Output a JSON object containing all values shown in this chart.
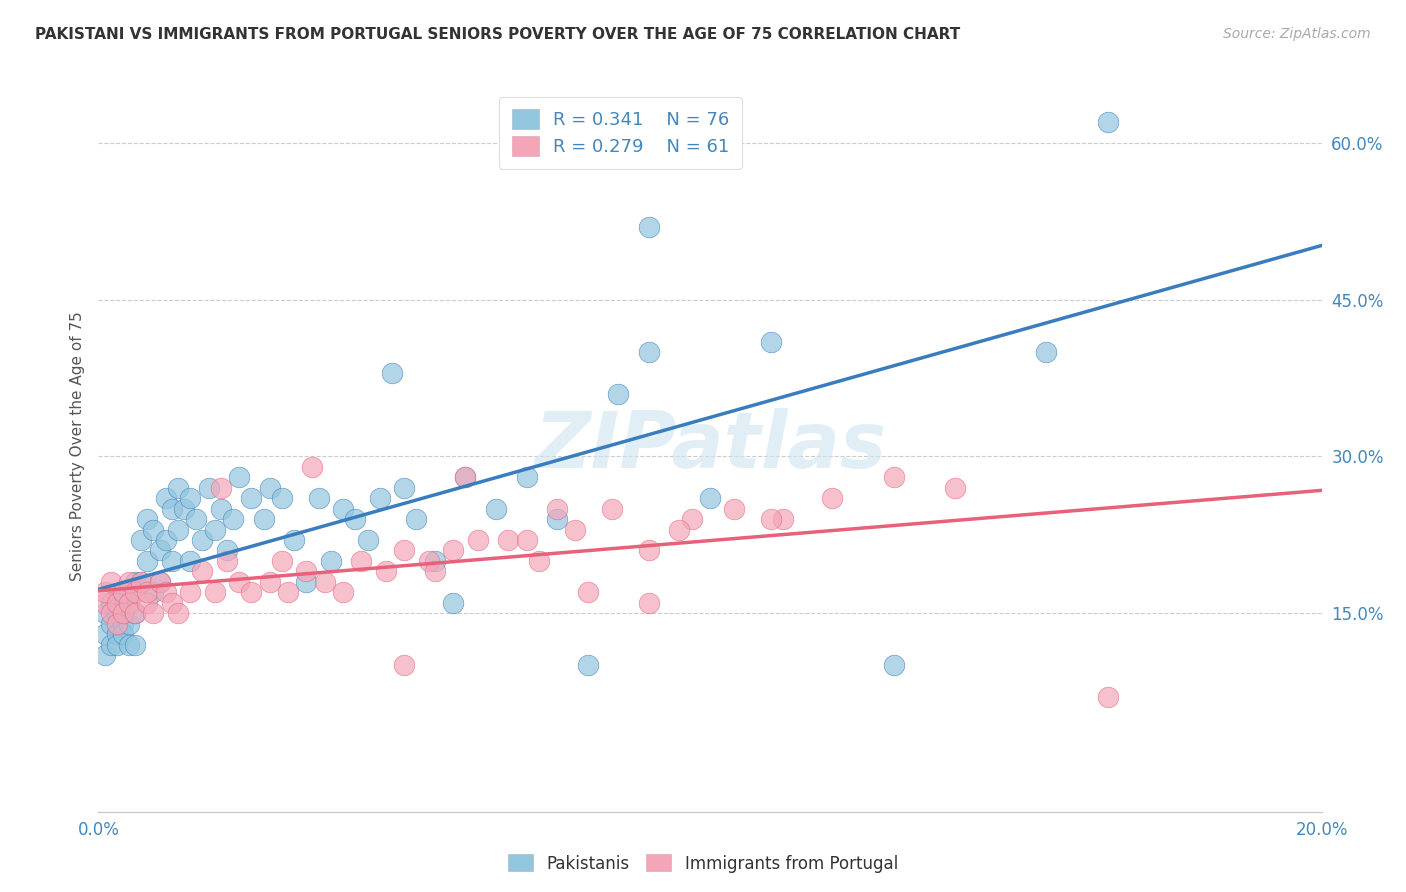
{
  "title": "PAKISTANI VS IMMIGRANTS FROM PORTUGAL SENIORS POVERTY OVER THE AGE OF 75 CORRELATION CHART",
  "source": "Source: ZipAtlas.com",
  "ylabel": "Seniors Poverty Over the Age of 75",
  "xlim": [
    0.0,
    0.2
  ],
  "ylim": [
    -0.04,
    0.66
  ],
  "x_ticks": [
    0.0,
    0.05,
    0.1,
    0.15,
    0.2
  ],
  "x_tick_labels": [
    "0.0%",
    "",
    "",
    "",
    "20.0%"
  ],
  "y_ticks_right": [
    0.15,
    0.3,
    0.45,
    0.6
  ],
  "y_tick_labels_right": [
    "15.0%",
    "30.0%",
    "45.0%",
    "60.0%"
  ],
  "blue_color": "#92c5de",
  "pink_color": "#f4a6b8",
  "blue_line_color": "#3a7dbf",
  "pink_line_color": "#e8607a",
  "legend_r_blue": "R = 0.341",
  "legend_n_blue": "N = 76",
  "legend_r_pink": "R = 0.279",
  "legend_n_pink": "N = 61",
  "legend_label_blue": "Pakistanis",
  "legend_label_pink": "Immigrants from Portugal",
  "watermark": "ZIPatlas",
  "blue_x": [
    0.001,
    0.001,
    0.001,
    0.002,
    0.002,
    0.002,
    0.003,
    0.003,
    0.003,
    0.003,
    0.004,
    0.004,
    0.004,
    0.004,
    0.005,
    0.005,
    0.005,
    0.005,
    0.006,
    0.006,
    0.006,
    0.007,
    0.007,
    0.008,
    0.008,
    0.009,
    0.009,
    0.01,
    0.01,
    0.011,
    0.011,
    0.012,
    0.012,
    0.013,
    0.013,
    0.014,
    0.015,
    0.015,
    0.016,
    0.017,
    0.018,
    0.019,
    0.02,
    0.021,
    0.022,
    0.023,
    0.025,
    0.027,
    0.028,
    0.03,
    0.032,
    0.034,
    0.036,
    0.038,
    0.04,
    0.042,
    0.044,
    0.046,
    0.05,
    0.052,
    0.055,
    0.058,
    0.06,
    0.065,
    0.07,
    0.075,
    0.08,
    0.085,
    0.09,
    0.1,
    0.048,
    0.11,
    0.13,
    0.155,
    0.09,
    0.165
  ],
  "blue_y": [
    0.13,
    0.15,
    0.11,
    0.14,
    0.12,
    0.16,
    0.15,
    0.13,
    0.12,
    0.16,
    0.14,
    0.17,
    0.13,
    0.15,
    0.17,
    0.14,
    0.12,
    0.16,
    0.18,
    0.15,
    0.12,
    0.22,
    0.18,
    0.24,
    0.2,
    0.23,
    0.17,
    0.21,
    0.18,
    0.26,
    0.22,
    0.25,
    0.2,
    0.27,
    0.23,
    0.25,
    0.26,
    0.2,
    0.24,
    0.22,
    0.27,
    0.23,
    0.25,
    0.21,
    0.24,
    0.28,
    0.26,
    0.24,
    0.27,
    0.26,
    0.22,
    0.18,
    0.26,
    0.2,
    0.25,
    0.24,
    0.22,
    0.26,
    0.27,
    0.24,
    0.2,
    0.16,
    0.28,
    0.25,
    0.28,
    0.24,
    0.1,
    0.36,
    0.4,
    0.26,
    0.38,
    0.41,
    0.1,
    0.4,
    0.52,
    0.62
  ],
  "pink_x": [
    0.001,
    0.001,
    0.002,
    0.002,
    0.003,
    0.003,
    0.004,
    0.004,
    0.005,
    0.005,
    0.006,
    0.006,
    0.007,
    0.008,
    0.008,
    0.009,
    0.01,
    0.011,
    0.012,
    0.013,
    0.015,
    0.017,
    0.019,
    0.021,
    0.023,
    0.025,
    0.028,
    0.031,
    0.034,
    0.037,
    0.04,
    0.043,
    0.047,
    0.05,
    0.054,
    0.058,
    0.062,
    0.067,
    0.072,
    0.078,
    0.084,
    0.09,
    0.097,
    0.104,
    0.112,
    0.12,
    0.13,
    0.14,
    0.05,
    0.07,
    0.09,
    0.11,
    0.03,
    0.055,
    0.075,
    0.095,
    0.035,
    0.06,
    0.08,
    0.165,
    0.02
  ],
  "pink_y": [
    0.16,
    0.17,
    0.15,
    0.18,
    0.16,
    0.14,
    0.17,
    0.15,
    0.16,
    0.18,
    0.15,
    0.17,
    0.18,
    0.16,
    0.17,
    0.15,
    0.18,
    0.17,
    0.16,
    0.15,
    0.17,
    0.19,
    0.17,
    0.2,
    0.18,
    0.17,
    0.18,
    0.17,
    0.19,
    0.18,
    0.17,
    0.2,
    0.19,
    0.21,
    0.2,
    0.21,
    0.22,
    0.22,
    0.2,
    0.23,
    0.25,
    0.21,
    0.24,
    0.25,
    0.24,
    0.26,
    0.28,
    0.27,
    0.1,
    0.22,
    0.16,
    0.24,
    0.2,
    0.19,
    0.25,
    0.23,
    0.29,
    0.28,
    0.17,
    0.07,
    0.27
  ]
}
